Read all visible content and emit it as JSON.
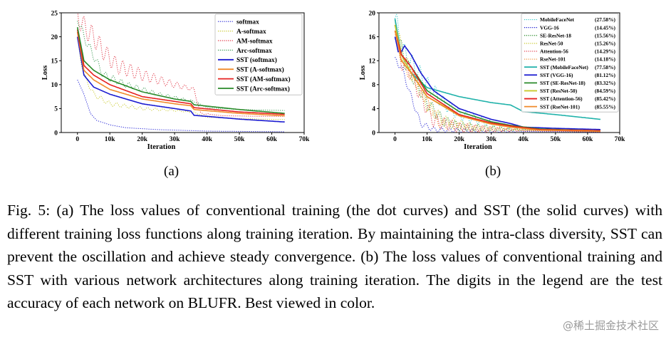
{
  "chart_data": [
    {
      "id": "a",
      "type": "line",
      "subtitle": "(a)",
      "xlabel": "Iteration",
      "ylabel": "Loss",
      "xlim": [
        -5000,
        70000
      ],
      "ylim": [
        0,
        25
      ],
      "xticks": [
        0,
        10000,
        20000,
        30000,
        40000,
        50000,
        60000,
        70000
      ],
      "xtick_labels": [
        "0",
        "10k",
        "20k",
        "30k",
        "40k",
        "50k",
        "60k",
        "70k"
      ],
      "yticks": [
        0,
        5,
        10,
        15,
        20,
        25
      ],
      "ytick_labels": [
        "0",
        "5",
        "10",
        "15",
        "20",
        "25"
      ],
      "legend": "top-right",
      "series": [
        {
          "name": "softmax",
          "color": "#1f1fd6",
          "style": "dotted",
          "osc": 0.0,
          "points": [
            [
              0,
              11
            ],
            [
              2000,
              8
            ],
            [
              4000,
              4
            ],
            [
              6000,
              2.5
            ],
            [
              10000,
              1.6
            ],
            [
              15000,
              1.0
            ],
            [
              25000,
              0.6
            ],
            [
              40000,
              0.3
            ],
            [
              64000,
              0.15
            ]
          ]
        },
        {
          "name": "A-softmax",
          "color": "#c9c92c",
          "style": "dotted",
          "osc": 0.6,
          "points": [
            [
              0,
              19
            ],
            [
              2000,
              12
            ],
            [
              5000,
              8
            ],
            [
              10000,
              6
            ],
            [
              20000,
              5
            ],
            [
              30000,
              4.6
            ],
            [
              36000,
              4.2
            ],
            [
              40000,
              3.2
            ],
            [
              50000,
              2.9
            ],
            [
              64000,
              2.7
            ]
          ]
        },
        {
          "name": "AM-softmax",
          "color": "#e03040",
          "style": "dotted",
          "osc": 2.3,
          "points": [
            [
              0,
              24.5
            ],
            [
              2000,
              22
            ],
            [
              5000,
              20
            ],
            [
              8000,
              17
            ],
            [
              12000,
              14
            ],
            [
              20000,
              12
            ],
            [
              30000,
              10
            ],
            [
              36000,
              9
            ],
            [
              38000,
              4
            ],
            [
              45000,
              3.5
            ],
            [
              55000,
              3.4
            ],
            [
              64000,
              3.4
            ]
          ]
        },
        {
          "name": "Arc-softmax",
          "color": "#3a9a52",
          "style": "dotted",
          "osc": 1.0,
          "points": [
            [
              0,
              24
            ],
            [
              2000,
              20
            ],
            [
              5000,
              16
            ],
            [
              8000,
              12
            ],
            [
              15000,
              10
            ],
            [
              25000,
              8
            ],
            [
              36000,
              6.5
            ],
            [
              40000,
              5.2
            ],
            [
              50000,
              4.8
            ],
            [
              64000,
              4.6
            ]
          ]
        },
        {
          "name": "SST (softmax)",
          "color": "#1a1ad0",
          "style": "solid",
          "osc": 0.0,
          "points": [
            [
              0,
              20
            ],
            [
              2000,
              12
            ],
            [
              5000,
              9.5
            ],
            [
              10000,
              8
            ],
            [
              20000,
              6
            ],
            [
              30000,
              5
            ],
            [
              35000,
              4.5
            ],
            [
              36000,
              3.6
            ],
            [
              50000,
              2.8
            ],
            [
              64000,
              2.2
            ]
          ]
        },
        {
          "name": "SST (A-softmax)",
          "color": "#f08a2a",
          "style": "solid",
          "osc": 0.0,
          "points": [
            [
              0,
              21
            ],
            [
              2000,
              13
            ],
            [
              5000,
              11
            ],
            [
              10000,
              9
            ],
            [
              20000,
              7
            ],
            [
              30000,
              6
            ],
            [
              35000,
              5.6
            ],
            [
              36000,
              4.8
            ],
            [
              50000,
              4.0
            ],
            [
              64000,
              3.5
            ]
          ]
        },
        {
          "name": "SST (AM-softmax)",
          "color": "#e62020",
          "style": "solid",
          "osc": 0.0,
          "points": [
            [
              0,
              21.5
            ],
            [
              2000,
              14
            ],
            [
              5000,
              12
            ],
            [
              10000,
              10
            ],
            [
              20000,
              7.5
            ],
            [
              30000,
              6.5
            ],
            [
              35000,
              6
            ],
            [
              36000,
              5.2
            ],
            [
              50000,
              4.3
            ],
            [
              64000,
              3.8
            ]
          ]
        },
        {
          "name": "SST (Arc-softmax)",
          "color": "#2a8a2a",
          "style": "solid",
          "osc": 0.0,
          "points": [
            [
              0,
              22
            ],
            [
              2000,
              15
            ],
            [
              5000,
              13
            ],
            [
              10000,
              11
            ],
            [
              20000,
              8.5
            ],
            [
              30000,
              7
            ],
            [
              35000,
              6.5
            ],
            [
              36000,
              5.8
            ],
            [
              50000,
              4.8
            ],
            [
              64000,
              4.0
            ]
          ]
        }
      ]
    },
    {
      "id": "b",
      "type": "line",
      "subtitle": "(b)",
      "xlabel": "Iteration",
      "ylabel": "Loss",
      "xlim": [
        -5000,
        70000
      ],
      "ylim": [
        0,
        20
      ],
      "xticks": [
        0,
        10000,
        20000,
        30000,
        40000,
        50000,
        60000,
        70000
      ],
      "xtick_labels": [
        "0",
        "10k",
        "20k",
        "30k",
        "40k",
        "50k",
        "60k",
        "70k"
      ],
      "yticks": [
        0,
        4,
        8,
        12,
        16,
        20
      ],
      "ytick_labels": [
        "0",
        "4",
        "8",
        "12",
        "16",
        "20"
      ],
      "legend": "top-right",
      "series": [
        {
          "name": "MobileFaceNet",
          "acc": "(27.58%)",
          "color": "#30c8c8",
          "style": "dotted",
          "osc": 1.8,
          "points": [
            [
              0,
              19
            ],
            [
              3000,
              13
            ],
            [
              6000,
              11
            ],
            [
              10000,
              8
            ],
            [
              15000,
              5
            ],
            [
              20000,
              3
            ],
            [
              30000,
              1.5
            ],
            [
              40000,
              0.6
            ],
            [
              64000,
              0.3
            ]
          ]
        },
        {
          "name": "VGG-16",
          "acc": "(14.45%)",
          "color": "#1a1ad0",
          "style": "dotted",
          "osc": 0.6,
          "points": [
            [
              0,
              12
            ],
            [
              2000,
              11
            ],
            [
              5000,
              6
            ],
            [
              8000,
              1.5
            ],
            [
              12000,
              0.5
            ],
            [
              30000,
              0.2
            ],
            [
              64000,
              0.1
            ]
          ]
        },
        {
          "name": "SE-ResNet-18",
          "acc": "(15.56%)",
          "color": "#2a8a2a",
          "style": "dotted",
          "osc": 1.4,
          "points": [
            [
              0,
              18
            ],
            [
              3000,
              12
            ],
            [
              6000,
              9
            ],
            [
              10000,
              5
            ],
            [
              15000,
              2
            ],
            [
              20000,
              1
            ],
            [
              40000,
              0.4
            ],
            [
              64000,
              0.2
            ]
          ]
        },
        {
          "name": "ResNet-50",
          "acc": "(15.26%)",
          "color": "#c9c92c",
          "style": "dotted",
          "osc": 1.4,
          "points": [
            [
              0,
              18
            ],
            [
              3000,
              12
            ],
            [
              6000,
              9
            ],
            [
              10000,
              4.5
            ],
            [
              15000,
              2
            ],
            [
              25000,
              0.8
            ],
            [
              40000,
              0.4
            ],
            [
              64000,
              0.2
            ]
          ]
        },
        {
          "name": "Attention-56",
          "acc": "(14.29%)",
          "color": "#e03040",
          "style": "dotted",
          "osc": 1.6,
          "points": [
            [
              0,
              17
            ],
            [
              2000,
              12
            ],
            [
              5000,
              10
            ],
            [
              8000,
              6
            ],
            [
              12000,
              2
            ],
            [
              20000,
              0.8
            ],
            [
              40000,
              0.3
            ],
            [
              64000,
              0.1
            ]
          ]
        },
        {
          "name": "RseNet-101",
          "acc": "(14.18%)",
          "color": "#f08a2a",
          "style": "dotted",
          "osc": 1.2,
          "points": [
            [
              0,
              16
            ],
            [
              3000,
              11
            ],
            [
              6000,
              9
            ],
            [
              10000,
              5
            ],
            [
              14000,
              1.5
            ],
            [
              25000,
              0.6
            ],
            [
              64000,
              0.2
            ]
          ]
        },
        {
          "name": "SST (MobileFaceNet)",
          "acc": "(77.58%)",
          "color": "#20b2aa",
          "style": "solid",
          "osc": 0.0,
          "points": [
            [
              0,
              19
            ],
            [
              2000,
              13
            ],
            [
              5000,
              10
            ],
            [
              10000,
              7.5
            ],
            [
              20000,
              6
            ],
            [
              30000,
              5
            ],
            [
              36000,
              4.6
            ],
            [
              40000,
              3.5
            ],
            [
              50000,
              3.0
            ],
            [
              64000,
              2.2
            ]
          ]
        },
        {
          "name": "SST (VGG-16)",
          "acc": "(81.12%)",
          "color": "#1a1ad0",
          "style": "solid",
          "osc": 0.0,
          "points": [
            [
              0,
              16
            ],
            [
              1000,
              13.5
            ],
            [
              2000,
              13.5
            ],
            [
              3000,
              14.5
            ],
            [
              5000,
              13
            ],
            [
              8000,
              10
            ],
            [
              12000,
              7
            ],
            [
              20000,
              4
            ],
            [
              30000,
              2.2
            ],
            [
              36000,
              1.5
            ],
            [
              40000,
              0.9
            ],
            [
              50000,
              0.7
            ],
            [
              64000,
              0.5
            ]
          ]
        },
        {
          "name": "SST (SE-ResNet-18)",
          "acc": "(83.32%)",
          "color": "#2a8a2a",
          "style": "solid",
          "osc": 0.0,
          "points": [
            [
              0,
              18
            ],
            [
              2000,
              13
            ],
            [
              5000,
              11
            ],
            [
              10000,
              7
            ],
            [
              20000,
              3.5
            ],
            [
              30000,
              1.8
            ],
            [
              36000,
              1.2
            ],
            [
              45000,
              0.6
            ],
            [
              64000,
              0.3
            ]
          ]
        },
        {
          "name": "SST (ResNet-50)",
          "acc": "(84.59%)",
          "color": "#c9c92c",
          "style": "solid",
          "osc": 0.0,
          "points": [
            [
              0,
              18
            ],
            [
              2000,
              13
            ],
            [
              5000,
              10
            ],
            [
              10000,
              6
            ],
            [
              20000,
              3
            ],
            [
              30000,
              1.5
            ],
            [
              36000,
              1.0
            ],
            [
              45000,
              0.5
            ],
            [
              64000,
              0.3
            ]
          ]
        },
        {
          "name": "SST (Attention-56)",
          "acc": "(85.42%)",
          "color": "#e62020",
          "style": "solid",
          "osc": 0.0,
          "points": [
            [
              0,
              17
            ],
            [
              2000,
              13
            ],
            [
              5000,
              11
            ],
            [
              10000,
              6.5
            ],
            [
              20000,
              3
            ],
            [
              30000,
              1.6
            ],
            [
              36000,
              1.1
            ],
            [
              45000,
              0.5
            ],
            [
              64000,
              0.3
            ]
          ]
        },
        {
          "name": "SST (RseNet-101)",
          "acc": "(85.55%)",
          "color": "#f08a2a",
          "style": "solid",
          "osc": 0.0,
          "points": [
            [
              0,
              17
            ],
            [
              2000,
              12
            ],
            [
              5000,
              10
            ],
            [
              10000,
              6
            ],
            [
              20000,
              2.8
            ],
            [
              30000,
              1.4
            ],
            [
              36000,
              0.9
            ],
            [
              45000,
              0.4
            ],
            [
              64000,
              0.2
            ]
          ]
        }
      ]
    }
  ],
  "caption": "Fig. 5: (a) The loss values of conventional training (the dot curves) and SST (the solid curves) with different training loss functions along training iteration. By maintaining the intra-class diversity, SST can prevent the oscillation and achieve steady convergence. (b) The loss values of conventional training and SST with various network architectures along training iteration. The digits in the legend are the test accuracy of each network on BLUFR. Best viewed in color.",
  "watermark": "@稀土掘金技术社区"
}
